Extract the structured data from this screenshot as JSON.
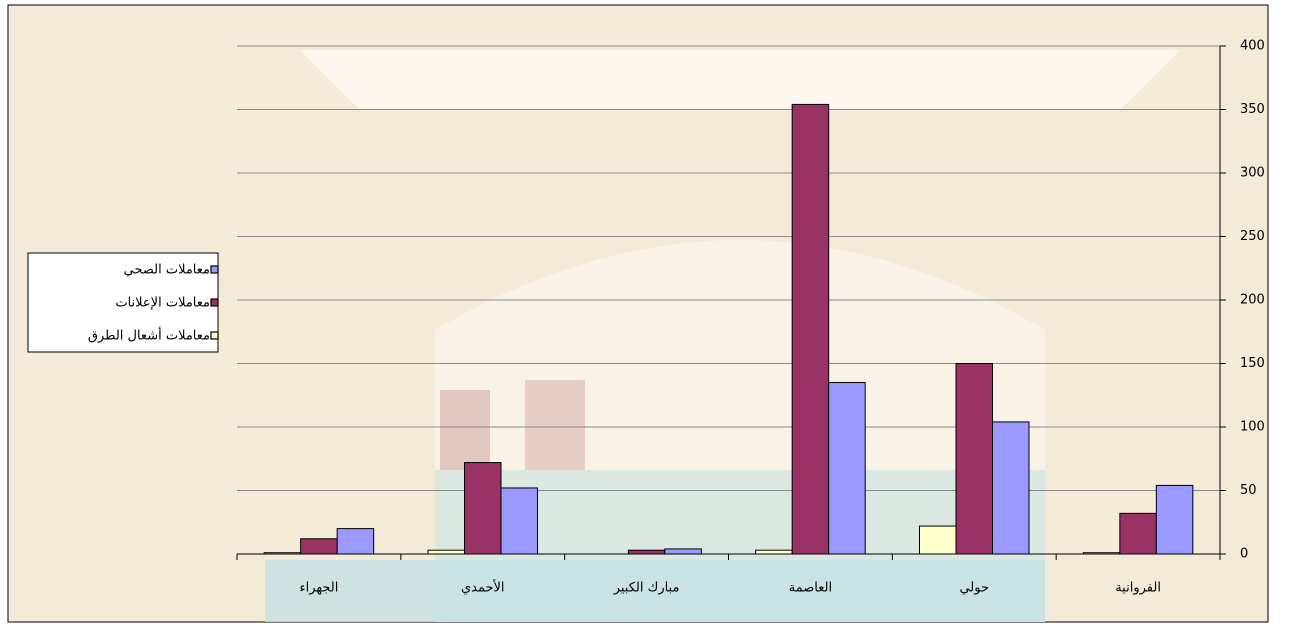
{
  "chart_data": {
    "type": "bar",
    "categories": [
      "الجهراء",
      "الأحمدي",
      "مبارك الكبير",
      "العاصمة",
      "حولي",
      "الفروانية"
    ],
    "series": [
      {
        "name": "معاملات أشعال الطرق",
        "color": "#ffffcc",
        "values": [
          1,
          3,
          0,
          3,
          22,
          1
        ]
      },
      {
        "name": "معاملات الإعلانات",
        "color": "#993366",
        "values": [
          12,
          72,
          3,
          354,
          150,
          32
        ]
      },
      {
        "name": "معاملات الصحي",
        "color": "#9999ff",
        "values": [
          20,
          52,
          4,
          135,
          104,
          54
        ]
      }
    ],
    "ylim": [
      0,
      400
    ],
    "yticks": [
      0,
      50,
      100,
      150,
      200,
      250,
      300,
      350,
      400
    ],
    "grid": true,
    "legend": "left"
  }
}
